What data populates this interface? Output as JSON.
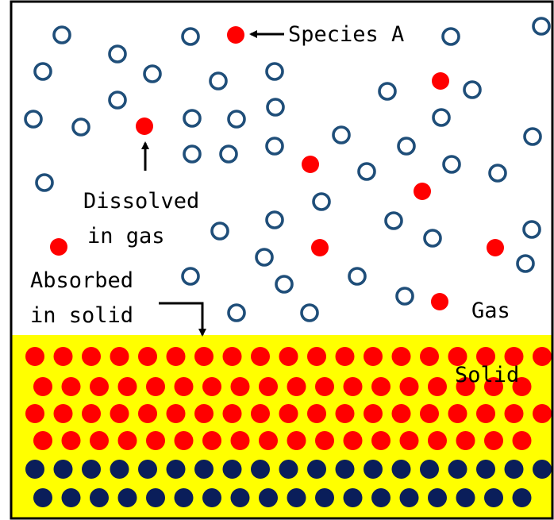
{
  "labels": {
    "species": "Species A",
    "dissolved_line1": "Dissolved",
    "dissolved_line2": "in gas",
    "absorbed_line1": "Absorbed",
    "absorbed_line2": "in solid",
    "gas": "Gas",
    "solid": "Solid"
  },
  "colors": {
    "frame": "#000000",
    "gas_region": "#ffffff",
    "solid_region": "#ffff00",
    "gas_molecule_ring": "#1f4e79",
    "species_a": "#ff0000",
    "solid_atom": "#0a1e5a"
  },
  "icons": {
    "gas_molecule": "hollow-circle",
    "species_a": "filled-red-dot",
    "solid_atom": "filled-navy-dot"
  }
}
